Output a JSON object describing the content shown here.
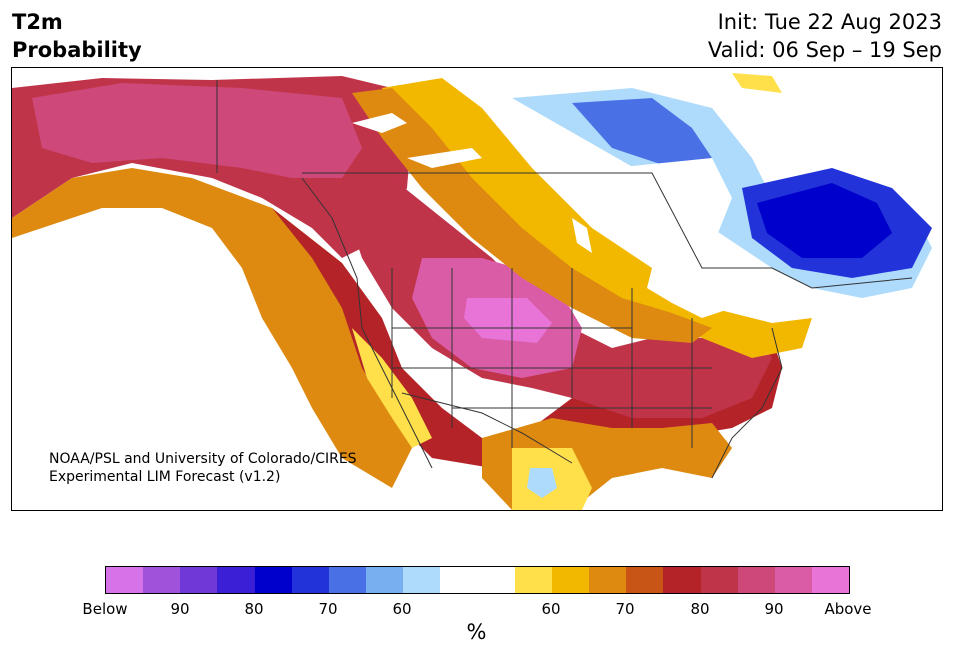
{
  "header": {
    "title_line1": "T2m",
    "title_line2": "Probability",
    "init": "Init: Tue 22 Aug 2023",
    "valid": "Valid: 06 Sep – 19 Sep"
  },
  "credit": {
    "line1": "NOAA/PSL and University of Colorado/CIRES",
    "line2": "Experimental LIM Forecast (v1.2)"
  },
  "colorbar": {
    "colors": [
      "#d673e8",
      "#a052db",
      "#7038d6",
      "#3a1fd6",
      "#0000cc",
      "#2233d9",
      "#4a70e6",
      "#78aff0",
      "#aedbfb",
      "#ffffff",
      "#ffffff",
      "#ffe04a",
      "#f2b800",
      "#de8a10",
      "#c85416",
      "#b42328",
      "#c0344a",
      "#ce497a",
      "#da5ca6",
      "#e874d8"
    ],
    "tick_labels": [
      "Below",
      "90",
      "80",
      "70",
      "60",
      "60",
      "70",
      "80",
      "90",
      "Above"
    ],
    "unit": "%"
  },
  "map": {
    "features": [
      "land-outline",
      "state-borders",
      "probability-shading"
    ]
  }
}
